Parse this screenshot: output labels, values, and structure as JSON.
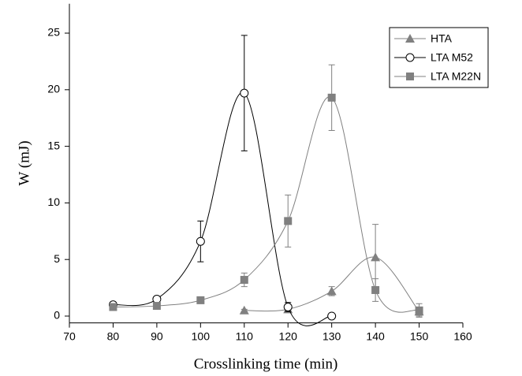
{
  "chart_data": {
    "type": "line",
    "xlabel": "Crosslinking time (min)",
    "ylabel": "W (mJ)",
    "xlim": [
      70,
      160
    ],
    "xticks": [
      70,
      80,
      90,
      100,
      110,
      120,
      130,
      140,
      150,
      160
    ],
    "ylim": [
      -0.6,
      27.6
    ],
    "yticks": [
      0,
      5,
      10,
      15,
      20,
      25
    ],
    "legend": "upper right",
    "smooth": true,
    "series": [
      {
        "name": "HTA",
        "color": "#808080",
        "marker": "triangle",
        "x": [
          110,
          120,
          130,
          140,
          150
        ],
        "values": [
          0.5,
          0.6,
          2.2,
          5.2,
          0.4
        ],
        "errors": [
          0.1,
          0.3,
          0.4,
          2.9,
          0.4
        ]
      },
      {
        "name": "LTA M52",
        "color": "#000000",
        "marker": "open-circle",
        "x": [
          80,
          90,
          100,
          110,
          120,
          130
        ],
        "values": [
          1.0,
          1.5,
          6.6,
          19.7,
          0.8,
          0.0
        ],
        "errors": [
          0.1,
          0.2,
          1.8,
          5.1,
          0.4,
          0.0
        ]
      },
      {
        "name": "LTA M22N",
        "color": "#808080",
        "marker": "square",
        "x": [
          80,
          90,
          100,
          110,
          120,
          130,
          140,
          150
        ],
        "values": [
          0.8,
          0.9,
          1.4,
          3.2,
          8.4,
          19.3,
          2.3,
          0.5
        ],
        "errors": [
          0.1,
          0.1,
          0.1,
          0.6,
          2.3,
          2.9,
          1.0,
          0.6
        ]
      }
    ]
  }
}
